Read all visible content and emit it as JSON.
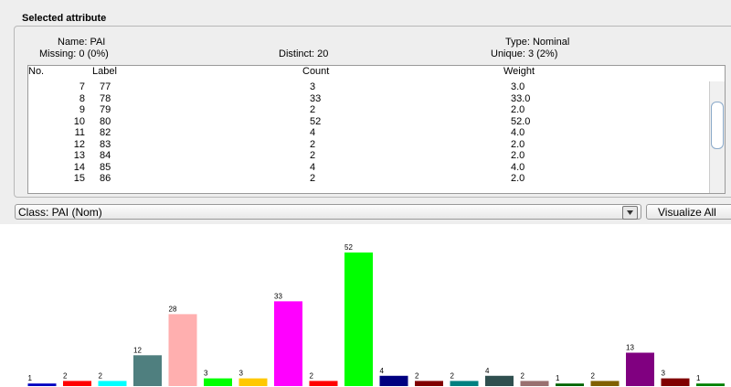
{
  "panel": {
    "title": "Selected attribute",
    "name": "Name: PAI",
    "missing": "Missing: 0 (0%)",
    "distinct": "Distinct: 20",
    "type": "Type: Nominal",
    "unique": "Unique: 3 (2%)"
  },
  "table": {
    "columns": [
      "No.",
      "Label",
      "Count",
      "Weight"
    ],
    "rows": [
      [
        7,
        "77",
        3,
        "3.0"
      ],
      [
        8,
        "78",
        33,
        "33.0"
      ],
      [
        9,
        "79",
        2,
        "2.0"
      ],
      [
        10,
        "80",
        52,
        "52.0"
      ],
      [
        11,
        "82",
        4,
        "4.0"
      ],
      [
        12,
        "83",
        2,
        "2.0"
      ],
      [
        13,
        "84",
        2,
        "2.0"
      ],
      [
        14,
        "85",
        4,
        "4.0"
      ],
      [
        15,
        "86",
        2,
        "2.0"
      ]
    ]
  },
  "class_selector": "Class: PAI (Nom)",
  "button": "Visualize All",
  "histogram": {
    "values": [
      1,
      2,
      2,
      12,
      28,
      3,
      3,
      33,
      2,
      52,
      4,
      2,
      2,
      4,
      2,
      1,
      2,
      13,
      3,
      1
    ],
    "colors": [
      "#0000c0",
      "#ff0000",
      "#00ffff",
      "#4f7f7f",
      "#ffafaf",
      "#00ff00",
      "#ffc800",
      "#ff00ff",
      "#ff0000",
      "#00ff00",
      "#000080",
      "#800000",
      "#008080",
      "#2f4f4f",
      "#997070",
      "#006400",
      "#806000",
      "#800080",
      "#800000",
      "#008000"
    ]
  }
}
